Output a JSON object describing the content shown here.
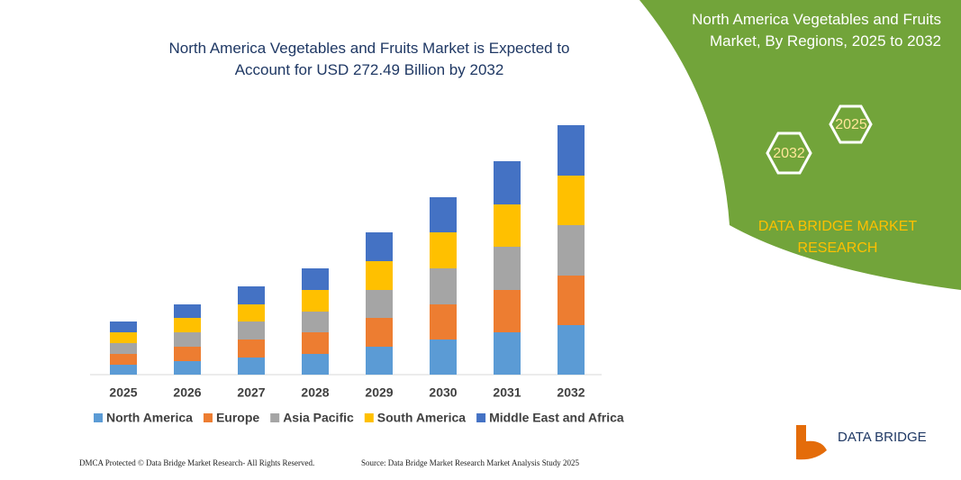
{
  "chart_data": {
    "type": "stacked_bar",
    "title": "North America Vegetables and Fruits Market is Expected to Account for USD 272.49 Billion by 2032",
    "categories": [
      "2025",
      "2026",
      "2027",
      "2028",
      "2029",
      "2030",
      "2031",
      "2032"
    ],
    "series": [
      {
        "name": "North America",
        "color": "#5b9bd5",
        "values": [
          11,
          15,
          19,
          23,
          31,
          39,
          47,
          55
        ]
      },
      {
        "name": "Europe",
        "color": "#ed7d31",
        "values": [
          12,
          16,
          20,
          24,
          32,
          39,
          47,
          55
        ]
      },
      {
        "name": "Asia Pacific",
        "color": "#a5a5a5",
        "values": [
          12,
          16,
          20,
          23,
          31,
          40,
          48,
          56
        ]
      },
      {
        "name": "South America",
        "color": "#ffc000",
        "values": [
          12,
          16,
          19,
          24,
          32,
          40,
          47,
          55
        ]
      },
      {
        "name": "Middle East and Africa",
        "color": "#4472c4",
        "values": [
          12,
          15,
          20,
          24,
          32,
          39,
          48,
          56
        ]
      }
    ],
    "legend": "bottom"
  },
  "panel": {
    "title": "North America Vegetables and Fruits Market, By Regions, 2025 to 2032",
    "hex_end": "2032",
    "hex_start": "2025",
    "brand": "DATA BRIDGE MARKET RESEARCH"
  },
  "footer": {
    "left": "DMCA Protected © Data Bridge Market Research- All Rights Reserved.",
    "right": "Source: Data Bridge Market Research Market Analysis Study 2025",
    "logo": "DATA BRIDGE"
  }
}
